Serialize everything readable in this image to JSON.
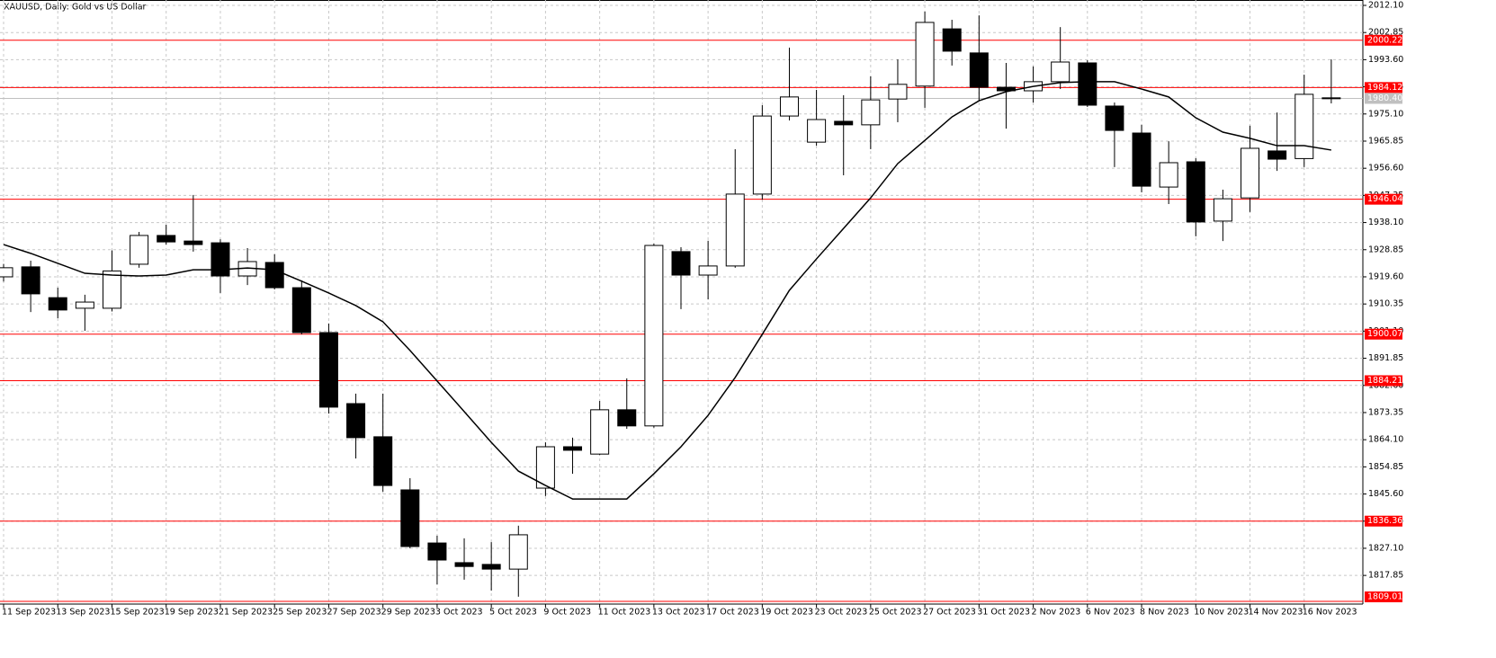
{
  "chart_data": {
    "type": "candlestick",
    "title": "XAUUSD, Daily:  Gold vs US Dollar",
    "categories": [
      "11 Sep 2023",
      null,
      "13 Sep 2023",
      null,
      "15 Sep 2023",
      null,
      "19 Sep 2023",
      null,
      "21 Sep 2023",
      null,
      "25 Sep 2023",
      null,
      "27 Sep 2023",
      null,
      "29 Sep 2023",
      null,
      "3 Oct 2023",
      null,
      "5 Oct 2023",
      null,
      "9 Oct 2023",
      null,
      "11 Oct 2023",
      null,
      "13 Oct 2023",
      null,
      "17 Oct 2023",
      null,
      "19 Oct 2023",
      null,
      "23 Oct 2023",
      null,
      "25 Oct 2023",
      null,
      "27 Oct 2023",
      null,
      "31 Oct 2023",
      null,
      "2 Nov 2023",
      null,
      "6 Nov 2023",
      null,
      "8 Nov 2023",
      null,
      "10 Nov 2023",
      null,
      "14 Nov 2023",
      null,
      "16 Nov 2023",
      null
    ],
    "open": [
      1919.6,
      1923.0,
      1912.5,
      1908.9,
      1908.9,
      1923.9,
      1933.7,
      1931.8,
      1931.2,
      1919.9,
      1924.5,
      1915.9,
      1900.6,
      1876.4,
      1865.1,
      1847.0,
      1828.9,
      1822.2,
      1821.6,
      1820.0,
      1847.6,
      1861.7,
      1859.2,
      1874.3,
      1868.8,
      1928.2,
      1920.2,
      1923.3,
      1947.8,
      1974.4,
      1965.5,
      1972.6,
      1971.4,
      1980.2,
      1984.6,
      2004.1,
      1995.9,
      1984.2,
      1983.0,
      1986.1,
      1992.5,
      1977.8,
      1968.6,
      1950.2,
      1958.8,
      1938.6,
      1946.5,
      1962.5,
      1959.9,
      1980.6
    ],
    "high": [
      1924,
      1925.1,
      1915.9,
      1913.5,
      1928.6,
      1934.9,
      1937.4,
      1947.5,
      1932.4,
      1929.4,
      1927.3,
      1918.4,
      1903.7,
      1879.8,
      1879.8,
      1851.0,
      1831.4,
      1830.5,
      1829.2,
      1834.8,
      1863.2,
      1864.8,
      1877.3,
      1885.0,
      1930.9,
      1929.7,
      1931.9,
      1963.1,
      1978.1,
      1997.7,
      1983.3,
      1981.5,
      1987.9,
      1993.7,
      2010.0,
      2007.2,
      2008.7,
      1992.5,
      1991.3,
      2004.7,
      1993.4,
      1979.0,
      1971.4,
      1965.8,
      1960.0,
      1949.3,
      1971.1,
      1975.6,
      1988.5,
      1993.7
    ],
    "low": [
      1918,
      1907.6,
      1905.5,
      1901.2,
      1907.8,
      1922.7,
      1930.6,
      1928.2,
      1914.1,
      1916.8,
      1915.3,
      1900.0,
      1873.0,
      1857.7,
      1846.4,
      1827.1,
      1814.8,
      1816.4,
      1812.7,
      1810.6,
      1844.9,
      1852.5,
      1858.9,
      1867.8,
      1868.2,
      1908.6,
      1911.9,
      1922.7,
      1945.9,
      1972.9,
      1964.3,
      1954.2,
      1963.1,
      1972.3,
      1977.2,
      1991.6,
      1979.6,
      1970.1,
      1979.0,
      1983.6,
      1977.5,
      1957.0,
      1948.4,
      1944.4,
      1933.4,
      1931.8,
      1941.7,
      1955.7,
      1957.0,
      1978.7
    ],
    "close": [
      1922.7,
      1913.8,
      1908.3,
      1911.0,
      1921.6,
      1933.7,
      1931.5,
      1930.6,
      1919.9,
      1924.8,
      1915.9,
      1900.6,
      1875.2,
      1864.8,
      1848.5,
      1827.7,
      1823.1,
      1820.9,
      1820.0,
      1831.7,
      1861.7,
      1860.5,
      1874.3,
      1868.8,
      1930.3,
      1920.2,
      1923.3,
      1947.8,
      1974.4,
      1980.9,
      1973.2,
      1971.4,
      1979.9,
      1985.2,
      2006.3,
      1996.5,
      1984.2,
      1983.0,
      1986.1,
      1992.8,
      1978.1,
      1969.5,
      1950.5,
      1958.5,
      1938.3,
      1946.2,
      1963.4,
      1959.7,
      1981.8,
      1980.4
    ],
    "ma": [
      1930.6,
      1927.6,
      1924.2,
      1920.8,
      1920.2,
      1919.9,
      1920.2,
      1922.0,
      1922.0,
      1922.6,
      1922.0,
      1918.1,
      1914.1,
      1909.8,
      1904.3,
      1894.5,
      1884.1,
      1873.7,
      1863.2,
      1853.4,
      1848.5,
      1843.9,
      1843.9,
      1843.9,
      1852.5,
      1861.7,
      1872.4,
      1885.3,
      1900.0,
      1915.0,
      1925.7,
      1936.1,
      1946.5,
      1958.2,
      1966.1,
      1974.1,
      1979.6,
      1982.7,
      1984.5,
      1985.8,
      1986.1,
      1986.1,
      1983.6,
      1980.9,
      1973.8,
      1968.9,
      1966.8,
      1964.3,
      1964.3,
      1962.8
    ],
    "up_color": "#ffffff",
    "down_color": "#000000",
    "line_color": "#000000",
    "level_color": "#ff0000",
    "price_color": "#c0c0c0",
    "ylim": [
      1809.01,
      2012.1
    ],
    "yticks": [
      {
        "value": 2012.1,
        "label": "2012.10"
      },
      2002.85,
      {
        "value": 1993.6,
        "label": "1993.60"
      },
      1984.35,
      {
        "value": 1975.1,
        "label": "1975.10"
      },
      1965.85,
      {
        "value": 1956.6,
        "label": "1956.60"
      },
      1947.35,
      {
        "value": 1938.1,
        "label": "1938.10"
      },
      1928.85,
      {
        "value": 1919.6,
        "label": "1919.60"
      },
      1910.35,
      {
        "value": 1901.1,
        "label": "1901.10"
      },
      1891.85,
      {
        "value": 1882.6,
        "label": "1882.60"
      },
      1873.35,
      {
        "value": 1864.1,
        "label": "1864.10"
      },
      1854.85,
      {
        "value": 1845.6,
        "label": "1845.60"
      },
      1836.35,
      {
        "value": 1827.1,
        "label": "1827.10"
      },
      1817.85
    ],
    "levels": [
      2000.22,
      1984.12,
      1946.04,
      1900.07,
      1884.21,
      1836.36,
      1809.01
    ],
    "current_price": {
      "value": 1980.4,
      "label": "1980.40"
    },
    "grid": true
  }
}
